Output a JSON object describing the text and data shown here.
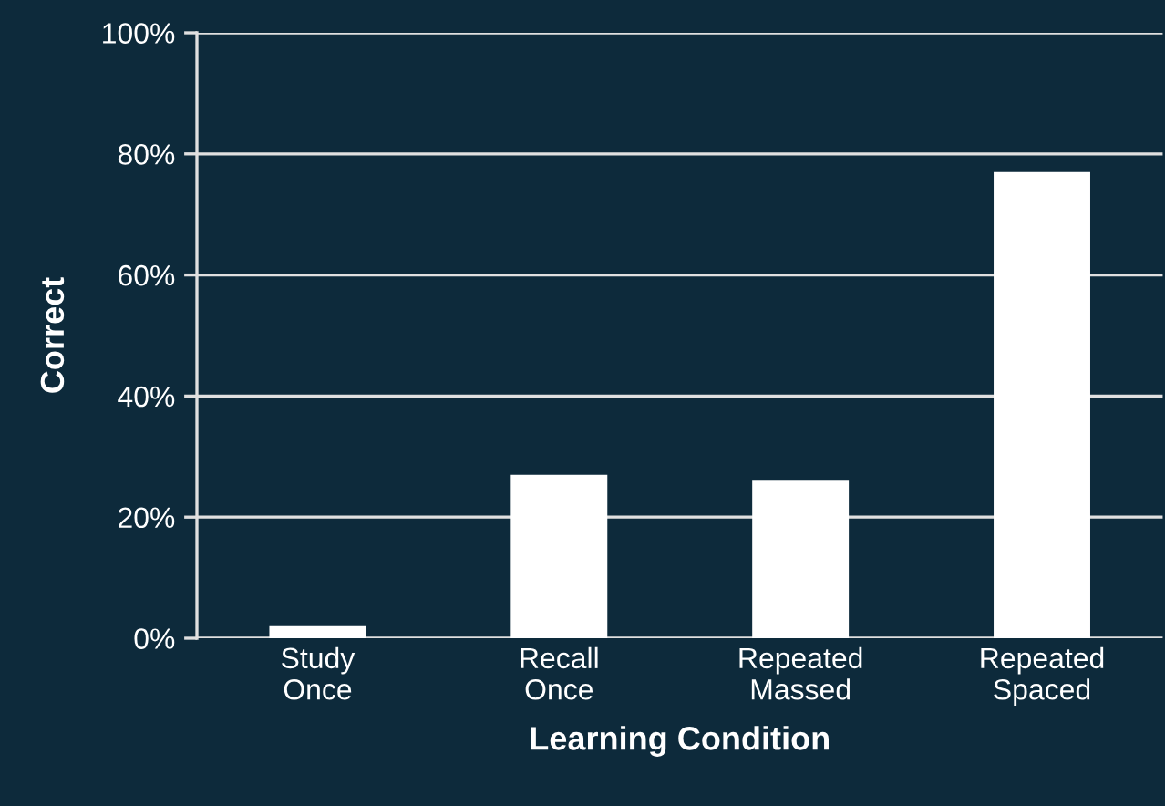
{
  "chart_data": {
    "type": "bar",
    "xlabel": "Learning Condition",
    "ylabel": "Correct",
    "categories": [
      "Study\nOnce",
      "Recall\nOnce",
      "Repeated\nMassed",
      "Repeated\nSpaced"
    ],
    "values": [
      2,
      27,
      26,
      77
    ],
    "color": "#ffffff",
    "ylim": [
      0,
      100
    ],
    "yticks": [
      {
        "value": 0,
        "label": "0%"
      },
      {
        "value": 20,
        "label": "20%"
      },
      {
        "value": 40,
        "label": "40%"
      },
      {
        "value": 60,
        "label": "60%"
      },
      {
        "value": 80,
        "label": "80%"
      },
      {
        "value": 100,
        "label": "100%"
      }
    ],
    "grid": "y"
  }
}
